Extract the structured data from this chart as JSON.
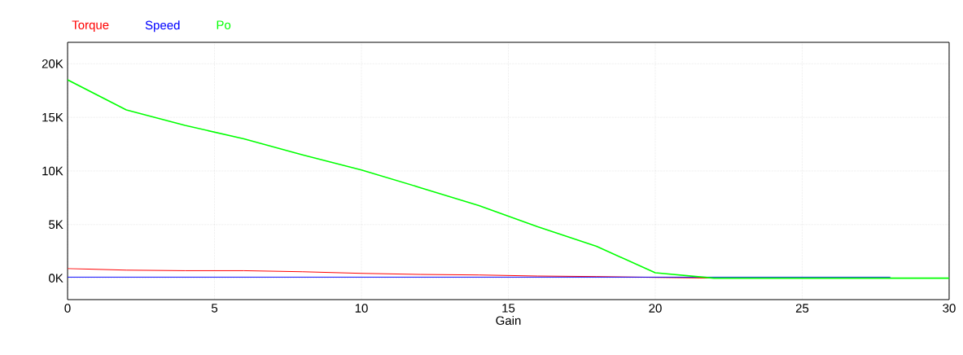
{
  "chart_data": {
    "type": "line",
    "xlabel": "Gain",
    "xlim": [
      0,
      30
    ],
    "xticks": [
      0,
      5,
      10,
      15,
      20,
      25,
      30
    ],
    "ylim": [
      -2000,
      22000
    ],
    "yticks": [
      {
        "value": 0,
        "label": "0K"
      },
      {
        "value": 5000,
        "label": "5K"
      },
      {
        "value": 10000,
        "label": "10K"
      },
      {
        "value": 15000,
        "label": "15K"
      },
      {
        "value": 20000,
        "label": "20K"
      }
    ],
    "grid": true,
    "legend": "top left",
    "marker": "none",
    "series": [
      {
        "name": "Torque",
        "color": "#ff0000",
        "x": [
          0,
          2,
          4,
          6,
          8,
          10,
          12,
          14,
          16,
          18,
          20,
          22
        ],
        "values": [
          900,
          750,
          700,
          700,
          600,
          450,
          350,
          300,
          200,
          150,
          null,
          0
        ]
      },
      {
        "name": "Speed",
        "color": "#0000ff",
        "x": [
          0,
          28
        ],
        "values": [
          100,
          100
        ]
      },
      {
        "name": "Po",
        "color": "#00ff00",
        "x": [
          0,
          2,
          4,
          6,
          8,
          10,
          12,
          14,
          16,
          18,
          20,
          22,
          24,
          26,
          28,
          30
        ],
        "values": [
          18500,
          15700,
          14250,
          13000,
          11500,
          10100,
          8450,
          6770,
          4800,
          2970,
          500,
          0,
          0,
          0,
          0,
          0
        ]
      }
    ]
  }
}
